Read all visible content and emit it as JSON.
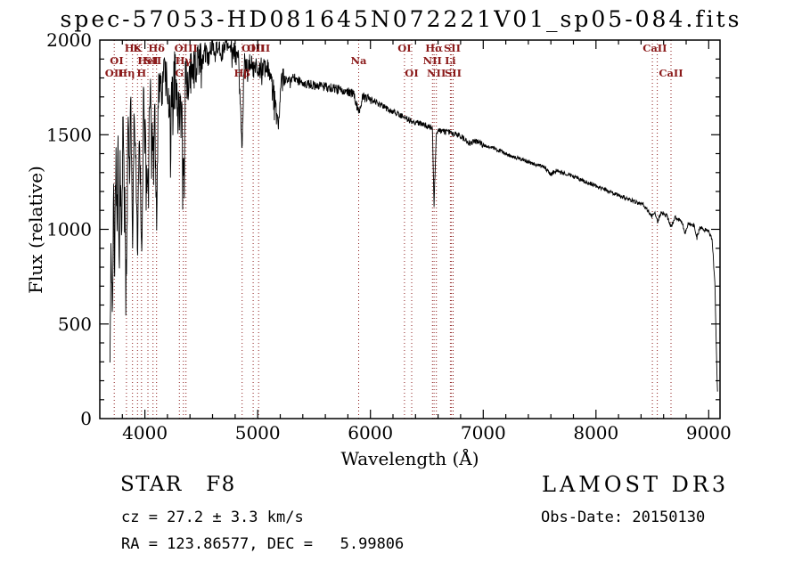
{
  "chart_data": {
    "type": "line",
    "title": "spec-57053-HD081645N072221V01_sp05-084.fits",
    "xlabel": "Wavelength (Å)",
    "ylabel": "Flux (relative)",
    "xlim": [
      3600,
      9100
    ],
    "ylim": [
      0,
      2000
    ],
    "xticks": [
      4000,
      5000,
      6000,
      7000,
      8000,
      9000
    ],
    "yticks": [
      0,
      500,
      1000,
      1500,
      2000
    ],
    "x_minor_step": 200,
    "y_minor_step": 100,
    "grid": false,
    "line_color": "#000000",
    "marker_color": "#8b1a1a",
    "series": [
      {
        "name": "spectrum",
        "points": [
          [
            3690,
            300
          ],
          [
            3700,
            900
          ],
          [
            3712,
            500
          ],
          [
            3722,
            1300
          ],
          [
            3732,
            800
          ],
          [
            3742,
            1450
          ],
          [
            3752,
            1000
          ],
          [
            3762,
            1550
          ],
          [
            3772,
            750
          ],
          [
            3782,
            1500
          ],
          [
            3795,
            950
          ],
          [
            3805,
            1600
          ],
          [
            3818,
            1250
          ],
          [
            3836,
            700
          ],
          [
            3850,
            1550
          ],
          [
            3862,
            1250
          ],
          [
            3875,
            1680
          ],
          [
            3890,
            900
          ],
          [
            3905,
            1720
          ],
          [
            3920,
            1350
          ],
          [
            3934,
            800
          ],
          [
            3950,
            1620
          ],
          [
            3970,
            850
          ],
          [
            3988,
            1700
          ],
          [
            4005,
            1450
          ],
          [
            4027,
            1250
          ],
          [
            4045,
            1780
          ],
          [
            4060,
            1520
          ],
          [
            4072,
            1400
          ],
          [
            4088,
            1650
          ],
          [
            4103,
            1000
          ],
          [
            4120,
            1780
          ],
          [
            4145,
            1700
          ],
          [
            4170,
            1820
          ],
          [
            4200,
            1780
          ],
          [
            4227,
            1600
          ],
          [
            4250,
            1850
          ],
          [
            4280,
            1800
          ],
          [
            4306,
            1560
          ],
          [
            4325,
            1750
          ],
          [
            4341,
            1280
          ],
          [
            4360,
            1820
          ],
          [
            4385,
            1780
          ],
          [
            4410,
            1880
          ],
          [
            4440,
            1840
          ],
          [
            4470,
            1900
          ],
          [
            4500,
            1870
          ],
          [
            4530,
            1940
          ],
          [
            4560,
            1900
          ],
          [
            4590,
            1960
          ],
          [
            4620,
            1920
          ],
          [
            4650,
            1970
          ],
          [
            4680,
            1930
          ],
          [
            4710,
            1980
          ],
          [
            4740,
            1950
          ],
          [
            4770,
            1960
          ],
          [
            4800,
            1930
          ],
          [
            4830,
            1890
          ],
          [
            4862,
            1450
          ],
          [
            4880,
            1880
          ],
          [
            4910,
            1850
          ],
          [
            4935,
            1880
          ],
          [
            4960,
            1850
          ],
          [
            4985,
            1870
          ],
          [
            5008,
            1830
          ],
          [
            5040,
            1870
          ],
          [
            5080,
            1850
          ],
          [
            5120,
            1830
          ],
          [
            5167,
            1620
          ],
          [
            5185,
            1560
          ],
          [
            5210,
            1800
          ],
          [
            5260,
            1790
          ],
          [
            5320,
            1800
          ],
          [
            5380,
            1780
          ],
          [
            5440,
            1770
          ],
          [
            5500,
            1760
          ],
          [
            5560,
            1755
          ],
          [
            5620,
            1750
          ],
          [
            5680,
            1745
          ],
          [
            5740,
            1735
          ],
          [
            5800,
            1725
          ],
          [
            5850,
            1715
          ],
          [
            5896,
            1620
          ],
          [
            5930,
            1700
          ],
          [
            5990,
            1690
          ],
          [
            6050,
            1670
          ],
          [
            6110,
            1650
          ],
          [
            6170,
            1630
          ],
          [
            6230,
            1615
          ],
          [
            6302,
            1590
          ],
          [
            6366,
            1570
          ],
          [
            6430,
            1560
          ],
          [
            6490,
            1550
          ],
          [
            6550,
            1535
          ],
          [
            6564,
            1130
          ],
          [
            6585,
            1520
          ],
          [
            6650,
            1515
          ],
          [
            6709,
            1510
          ],
          [
            6733,
            1505
          ],
          [
            6790,
            1495
          ],
          [
            6850,
            1470
          ],
          [
            6880,
            1450
          ],
          [
            6920,
            1470
          ],
          [
            6990,
            1450
          ],
          [
            7060,
            1435
          ],
          [
            7130,
            1420
          ],
          [
            7200,
            1400
          ],
          [
            7270,
            1385
          ],
          [
            7340,
            1370
          ],
          [
            7410,
            1355
          ],
          [
            7480,
            1340
          ],
          [
            7550,
            1325
          ],
          [
            7594,
            1290
          ],
          [
            7650,
            1310
          ],
          [
            7720,
            1295
          ],
          [
            7790,
            1280
          ],
          [
            7860,
            1262
          ],
          [
            7930,
            1245
          ],
          [
            8000,
            1228
          ],
          [
            8070,
            1210
          ],
          [
            8140,
            1195
          ],
          [
            8210,
            1178
          ],
          [
            8280,
            1162
          ],
          [
            8350,
            1145
          ],
          [
            8420,
            1130
          ],
          [
            8500,
            1070
          ],
          [
            8522,
            1100
          ],
          [
            8544,
            1040
          ],
          [
            8580,
            1090
          ],
          [
            8630,
            1070
          ],
          [
            8665,
            1010
          ],
          [
            8700,
            1060
          ],
          [
            8760,
            1045
          ],
          [
            8790,
            980
          ],
          [
            8820,
            1035
          ],
          [
            8870,
            1020
          ],
          [
            8895,
            955
          ],
          [
            8920,
            1010
          ],
          [
            8960,
            1000
          ],
          [
            9000,
            985
          ],
          [
            9030,
            950
          ],
          [
            9055,
            700
          ],
          [
            9070,
            300
          ],
          [
            9080,
            90
          ]
        ]
      }
    ],
    "noise_bands": [
      [
        3690,
        4500,
        115
      ],
      [
        4500,
        5250,
        55
      ],
      [
        5250,
        6050,
        25
      ],
      [
        6050,
        7000,
        16
      ],
      [
        7000,
        9100,
        11
      ]
    ],
    "spectral_lines": [
      3728,
      3836,
      3890,
      3934,
      3970,
      4027,
      4072,
      4103,
      4306,
      4341,
      4364,
      4862,
      4960,
      5008,
      5896,
      6302,
      6366,
      6550,
      6564,
      6585,
      6709,
      6718,
      6733,
      8500,
      8544,
      8665
    ],
    "line_labels": [
      {
        "wavelength": 3890,
        "row": 1,
        "text": "Hε"
      },
      {
        "wavelength": 3934,
        "row": 1,
        "text": "K"
      },
      {
        "wavelength": 4103,
        "row": 1,
        "text": "Hδ"
      },
      {
        "wavelength": 3750,
        "row": 2,
        "text": "OI"
      },
      {
        "wavelength": 4027,
        "row": 2,
        "text": "HeI"
      },
      {
        "wavelength": 4072,
        "row": 2,
        "text": "SII"
      },
      {
        "wavelength": 3728,
        "row": 3,
        "text": "OII"
      },
      {
        "wavelength": 3836,
        "row": 3,
        "text": "Hη"
      },
      {
        "wavelength": 3970,
        "row": 3,
        "text": "H"
      },
      {
        "wavelength": 4364,
        "row": 1,
        "text": "OIII"
      },
      {
        "wavelength": 4341,
        "row": 2,
        "text": "Hγ"
      },
      {
        "wavelength": 4306,
        "row": 3,
        "text": "G"
      },
      {
        "wavelength": 4960,
        "row": 1,
        "text": "OIII"
      },
      {
        "wavelength": 5008,
        "row": 1,
        "text": "OIII"
      },
      {
        "wavelength": 4862,
        "row": 3,
        "text": "Hβ"
      },
      {
        "wavelength": 5896,
        "row": 2,
        "text": "Na"
      },
      {
        "wavelength": 6302,
        "row": 1,
        "text": "OI"
      },
      {
        "wavelength": 6366,
        "row": 3,
        "text": "OI"
      },
      {
        "wavelength": 6564,
        "row": 1,
        "text": "Hα"
      },
      {
        "wavelength": 6725,
        "row": 1,
        "text": "SII"
      },
      {
        "wavelength": 6550,
        "row": 2,
        "text": "NII"
      },
      {
        "wavelength": 6709,
        "row": 2,
        "text": "Li"
      },
      {
        "wavelength": 6585,
        "row": 3,
        "text": "NII"
      },
      {
        "wavelength": 6733,
        "row": 3,
        "text": "SII"
      },
      {
        "wavelength": 8522,
        "row": 1,
        "text": "CaII"
      },
      {
        "wavelength": 8665,
        "row": 3,
        "text": "CaII"
      }
    ]
  },
  "annotations": {
    "object_class": "STAR   F8",
    "cz": "cz = 27.2 ± 3.3 km/s",
    "radec": "RA = 123.86577, DEC =   5.99806",
    "survey": "LAMOST DR3",
    "obs_date": "Obs-Date: 20150130"
  }
}
